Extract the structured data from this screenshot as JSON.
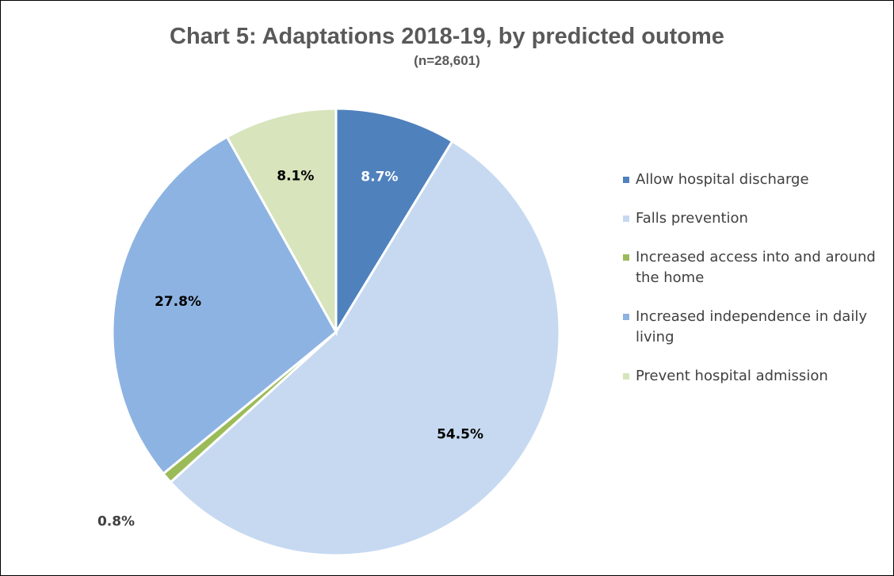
{
  "chart_data": {
    "type": "pie",
    "title": "Chart 5: Adaptations 2018-19, by predicted outome",
    "subtitle": "(n=28,601)",
    "categories": [
      "Allow hospital discharge",
      "Falls prevention",
      "Increased access into and around the home",
      "Increased independence in daily living",
      "Prevent hospital admission"
    ],
    "values": [
      8.7,
      54.5,
      0.8,
      27.8,
      8.1
    ],
    "value_labels": [
      "8.7%",
      "54.5%",
      "0.8%",
      "27.8%",
      "8.1%"
    ],
    "colors": [
      "#4f81bd",
      "#c6d9f1",
      "#9bbb59",
      "#8db3e2",
      "#d7e4bc"
    ],
    "legend": "right"
  }
}
